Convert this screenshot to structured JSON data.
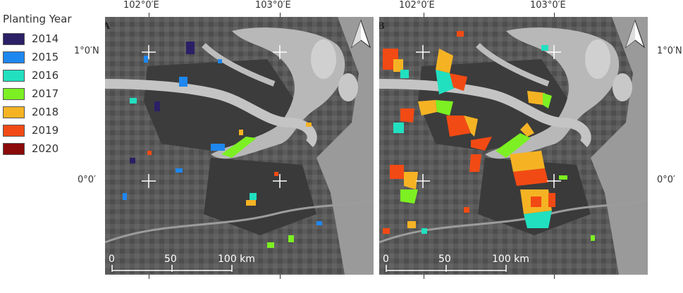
{
  "legend": {
    "title": "Planting Year",
    "items": [
      {
        "label": "2014",
        "color": "#2b1f66"
      },
      {
        "label": "2015",
        "color": "#1e87f0"
      },
      {
        "label": "2016",
        "color": "#21e0c0"
      },
      {
        "label": "2017",
        "color": "#7cf022"
      },
      {
        "label": "2018",
        "color": "#f5b324"
      },
      {
        "label": "2019",
        "color": "#f24a14"
      },
      {
        "label": "2020",
        "color": "#8b0a0a"
      }
    ]
  },
  "panels": {
    "a": {
      "letter": "A"
    },
    "b": {
      "letter": "B"
    }
  },
  "axes": {
    "lon1": "102°0′E",
    "lon2": "103°0′E",
    "lat1": "1°0′N",
    "lat2": "0°0′"
  },
  "scale": {
    "zero": "0",
    "mid": "50",
    "end": "100 km"
  },
  "icons": {
    "north": "north-arrow-icon",
    "grid": "grid-cross-icon"
  }
}
